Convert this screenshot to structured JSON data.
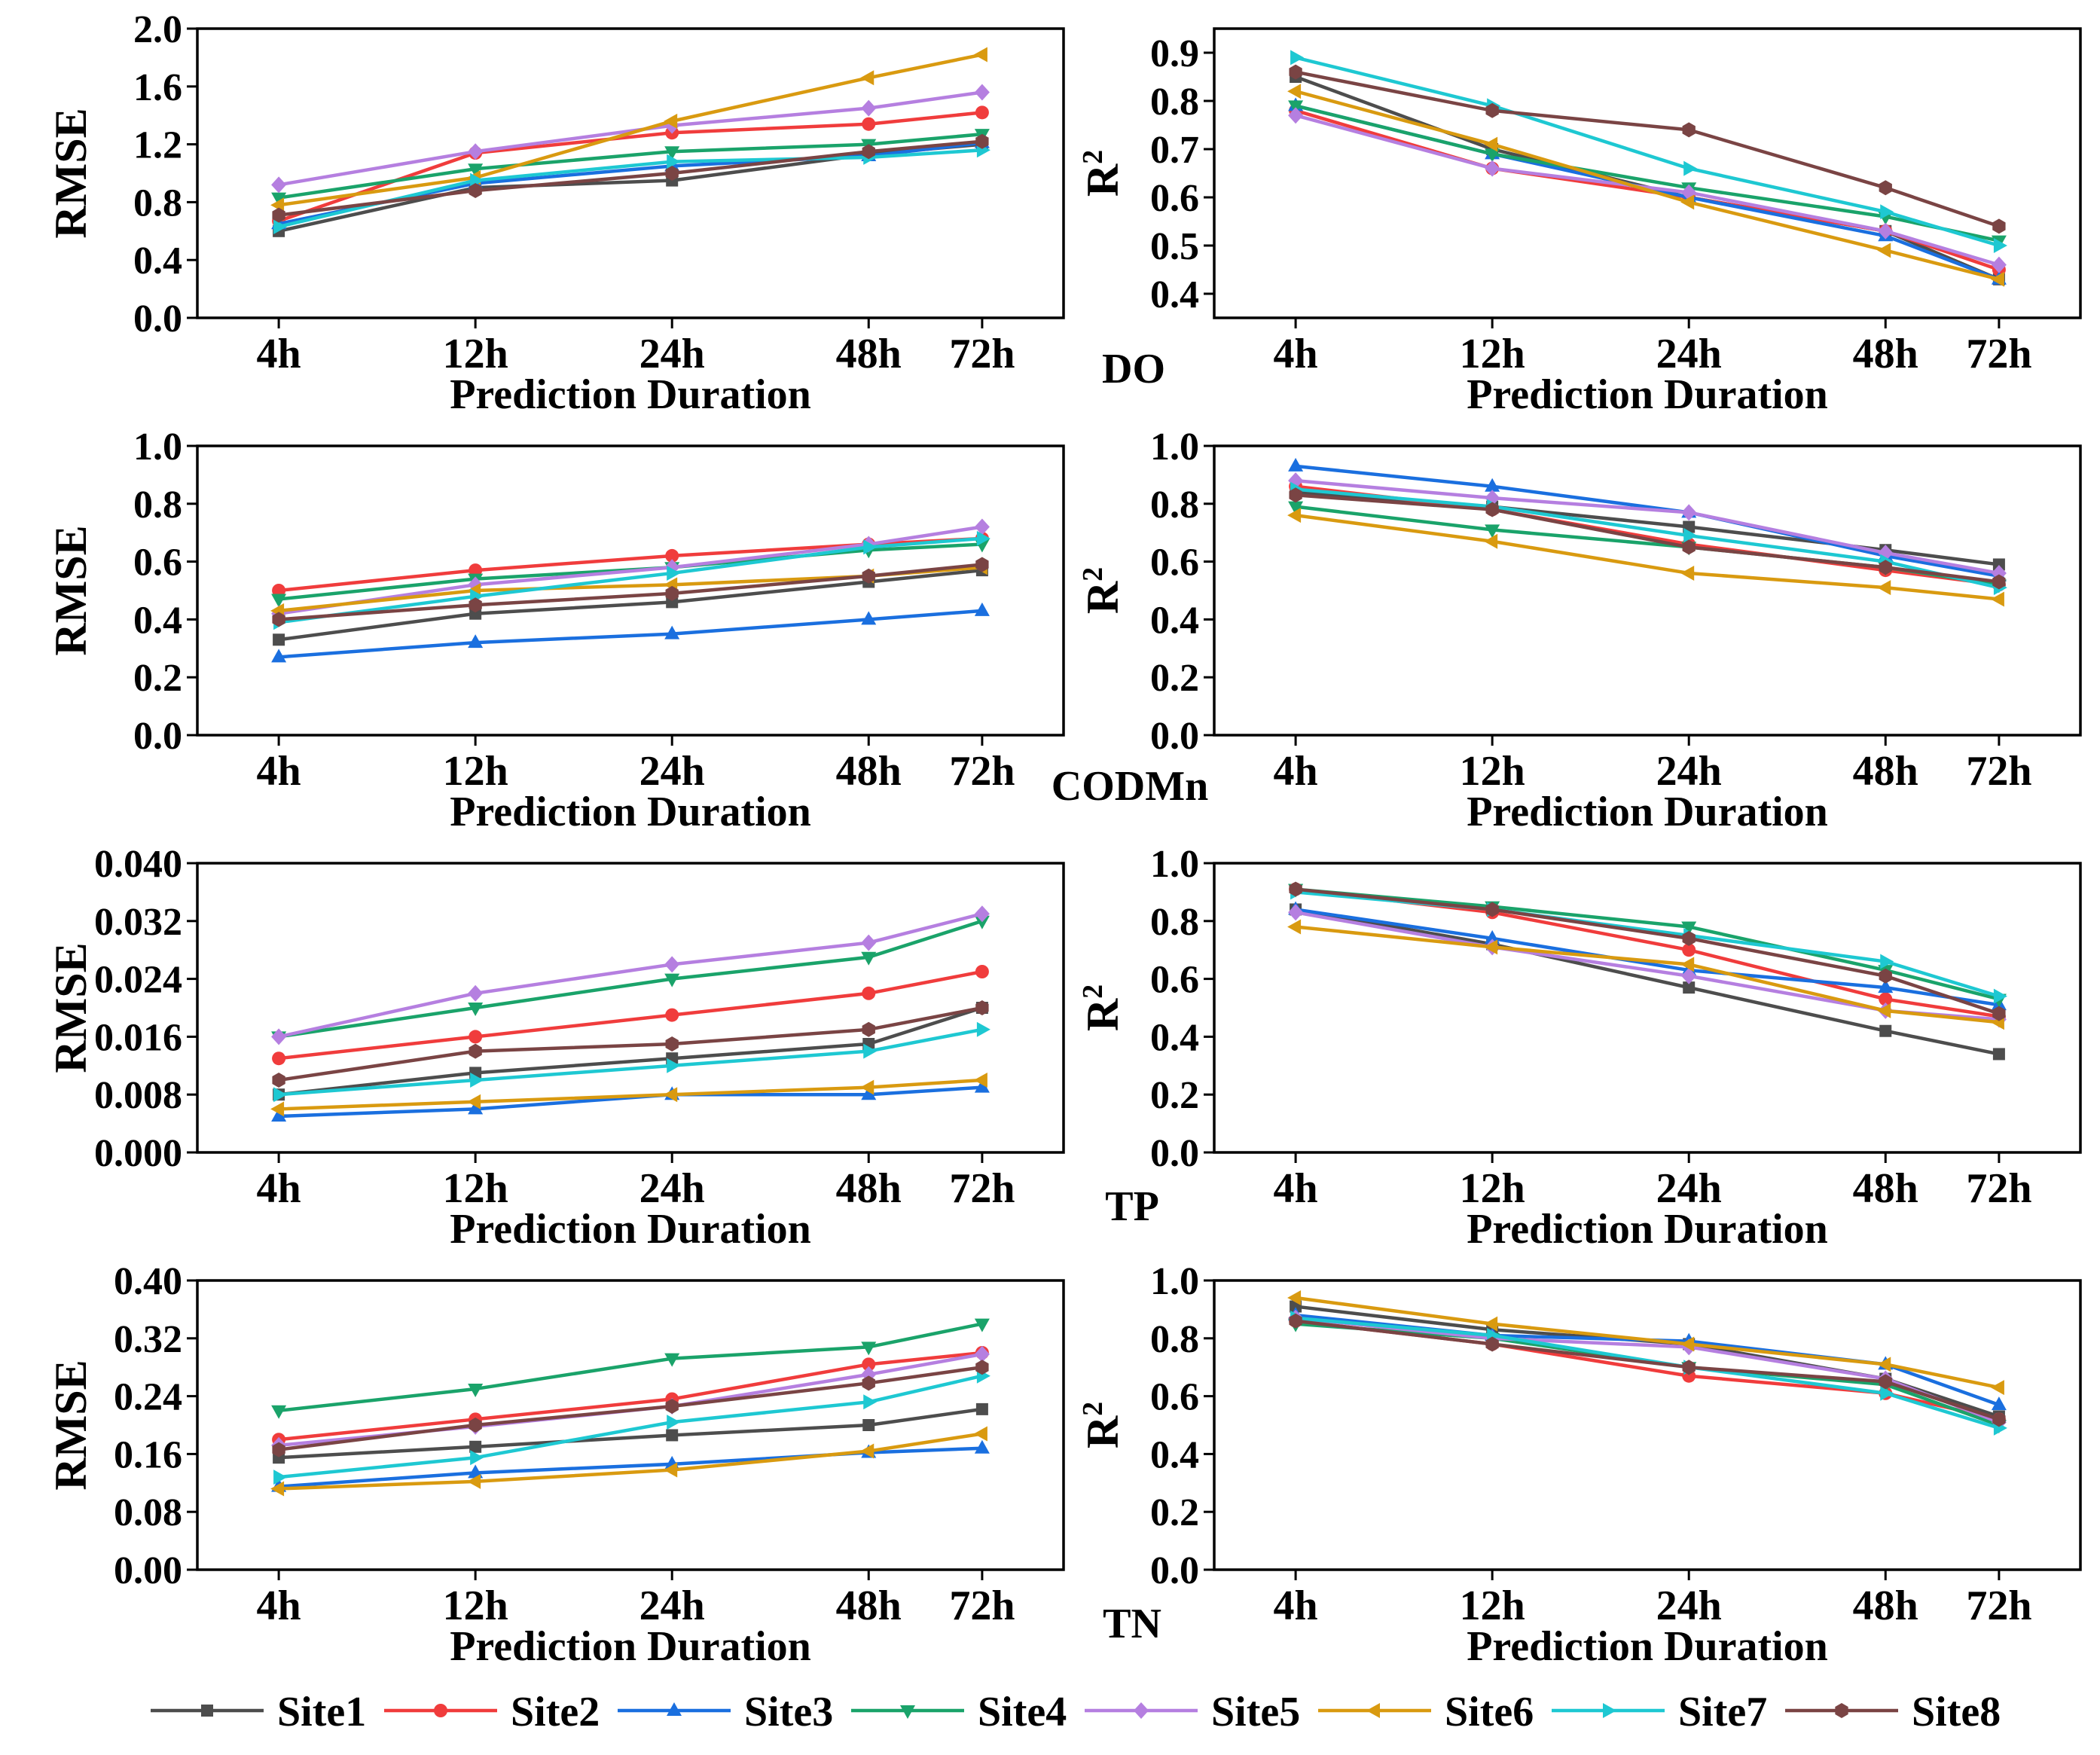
{
  "figure": {
    "x_categories": [
      "4h",
      "12h",
      "24h",
      "48h",
      "72h"
    ],
    "x_label": "Prediction Duration",
    "series_names": [
      "Site1",
      "Site2",
      "Site3",
      "Site4",
      "Site5",
      "Site6",
      "Site7",
      "Site8"
    ],
    "series_colors": [
      "#4d4d4d",
      "#f03c3c",
      "#1a6fdf",
      "#1aa36a",
      "#b57fe0",
      "#d99a10",
      "#1ec8d2",
      "#7a4444"
    ],
    "series_markers": [
      "square",
      "circle",
      "triangle-up",
      "triangle-down",
      "diamond",
      "triangle-left",
      "triangle-right",
      "hexagon"
    ],
    "parameter_labels": [
      "DO",
      "CODMn",
      "TP",
      "TN"
    ]
  },
  "chart_data": [
    {
      "type": "line",
      "parameter": "DO",
      "metric": "RMSE",
      "ylabel": "RMSE",
      "categories": [
        "4h",
        "12h",
        "24h",
        "48h",
        "72h"
      ],
      "ylim": [
        0.0,
        2.0
      ],
      "yticks": [
        "0.0",
        "0.4",
        "0.8",
        "1.2",
        "1.6",
        "2.0"
      ],
      "series": [
        {
          "name": "Site1",
          "values": [
            0.6,
            0.9,
            0.95,
            1.13,
            1.2
          ]
        },
        {
          "name": "Site2",
          "values": [
            0.67,
            1.14,
            1.28,
            1.34,
            1.42
          ]
        },
        {
          "name": "Site3",
          "values": [
            0.65,
            0.93,
            1.05,
            1.12,
            1.21
          ]
        },
        {
          "name": "Site4",
          "values": [
            0.83,
            1.03,
            1.15,
            1.2,
            1.27
          ]
        },
        {
          "name": "Site5",
          "values": [
            0.92,
            1.15,
            1.33,
            1.45,
            1.56
          ]
        },
        {
          "name": "Site6",
          "values": [
            0.78,
            0.97,
            1.36,
            1.66,
            1.82
          ]
        },
        {
          "name": "Site7",
          "values": [
            0.63,
            0.95,
            1.08,
            1.11,
            1.16
          ]
        },
        {
          "name": "Site8",
          "values": [
            0.71,
            0.88,
            1.0,
            1.15,
            1.22
          ]
        }
      ]
    },
    {
      "type": "line",
      "parameter": "DO",
      "metric": "R2",
      "categories": [
        "4h",
        "12h",
        "24h",
        "48h",
        "72h"
      ],
      "ylim": [
        0.35,
        0.95
      ],
      "yticks": [
        "0.4",
        "0.5",
        "0.6",
        "0.7",
        "0.8",
        "0.9"
      ],
      "series": [
        {
          "name": "Site1",
          "values": [
            0.85,
            0.7,
            0.6,
            0.53,
            0.43
          ]
        },
        {
          "name": "Site2",
          "values": [
            0.78,
            0.66,
            0.6,
            0.53,
            0.45
          ]
        },
        {
          "name": "Site3",
          "values": [
            0.79,
            0.69,
            0.6,
            0.52,
            0.43
          ]
        },
        {
          "name": "Site4",
          "values": [
            0.79,
            0.69,
            0.62,
            0.56,
            0.51
          ]
        },
        {
          "name": "Site5",
          "values": [
            0.77,
            0.66,
            0.61,
            0.53,
            0.46
          ]
        },
        {
          "name": "Site6",
          "values": [
            0.82,
            0.71,
            0.59,
            0.49,
            0.43
          ]
        },
        {
          "name": "Site7",
          "values": [
            0.89,
            0.79,
            0.66,
            0.57,
            0.5
          ]
        },
        {
          "name": "Site8",
          "values": [
            0.86,
            0.78,
            0.74,
            0.62,
            0.54
          ]
        }
      ]
    },
    {
      "type": "line",
      "parameter": "CODMn",
      "metric": "RMSE",
      "ylabel": "RMSE",
      "categories": [
        "4h",
        "12h",
        "24h",
        "48h",
        "72h"
      ],
      "ylim": [
        0.0,
        1.0
      ],
      "yticks": [
        "0.0",
        "0.2",
        "0.4",
        "0.6",
        "0.8",
        "1.0"
      ],
      "series": [
        {
          "name": "Site1",
          "values": [
            0.33,
            0.42,
            0.46,
            0.53,
            0.57
          ]
        },
        {
          "name": "Site2",
          "values": [
            0.5,
            0.57,
            0.62,
            0.66,
            0.68
          ]
        },
        {
          "name": "Site3",
          "values": [
            0.27,
            0.32,
            0.35,
            0.4,
            0.43
          ]
        },
        {
          "name": "Site4",
          "values": [
            0.47,
            0.54,
            0.58,
            0.64,
            0.66
          ]
        },
        {
          "name": "Site5",
          "values": [
            0.42,
            0.52,
            0.58,
            0.66,
            0.72
          ]
        },
        {
          "name": "Site6",
          "values": [
            0.43,
            0.5,
            0.52,
            0.55,
            0.58
          ]
        },
        {
          "name": "Site7",
          "values": [
            0.39,
            0.48,
            0.56,
            0.65,
            0.68
          ]
        },
        {
          "name": "Site8",
          "values": [
            0.4,
            0.45,
            0.49,
            0.55,
            0.59
          ]
        }
      ]
    },
    {
      "type": "line",
      "parameter": "CODMn",
      "metric": "R2",
      "categories": [
        "4h",
        "12h",
        "24h",
        "48h",
        "72h"
      ],
      "ylim": [
        0.0,
        1.0
      ],
      "yticks": [
        "0.0",
        "0.2",
        "0.4",
        "0.6",
        "0.8",
        "1.0"
      ],
      "series": [
        {
          "name": "Site1",
          "values": [
            0.84,
            0.79,
            0.72,
            0.64,
            0.59
          ]
        },
        {
          "name": "Site2",
          "values": [
            0.86,
            0.78,
            0.66,
            0.57,
            0.52
          ]
        },
        {
          "name": "Site3",
          "values": [
            0.93,
            0.86,
            0.77,
            0.62,
            0.55
          ]
        },
        {
          "name": "Site4",
          "values": [
            0.79,
            0.71,
            0.65,
            0.58,
            0.52
          ]
        },
        {
          "name": "Site5",
          "values": [
            0.88,
            0.82,
            0.77,
            0.63,
            0.56
          ]
        },
        {
          "name": "Site6",
          "values": [
            0.76,
            0.67,
            0.56,
            0.51,
            0.47
          ]
        },
        {
          "name": "Site7",
          "values": [
            0.85,
            0.79,
            0.69,
            0.6,
            0.51
          ]
        },
        {
          "name": "Site8",
          "values": [
            0.83,
            0.78,
            0.65,
            0.58,
            0.53
          ]
        }
      ]
    },
    {
      "type": "line",
      "parameter": "TP",
      "metric": "RMSE",
      "ylabel": "RMSE",
      "categories": [
        "4h",
        "12h",
        "24h",
        "48h",
        "72h"
      ],
      "ylim": [
        0.0,
        0.04
      ],
      "yticks": [
        "0.000",
        "0.008",
        "0.016",
        "0.024",
        "0.032",
        "0.040"
      ],
      "series": [
        {
          "name": "Site1",
          "values": [
            0.008,
            0.011,
            0.013,
            0.015,
            0.02
          ]
        },
        {
          "name": "Site2",
          "values": [
            0.013,
            0.016,
            0.019,
            0.022,
            0.025
          ]
        },
        {
          "name": "Site3",
          "values": [
            0.005,
            0.006,
            0.008,
            0.008,
            0.009
          ]
        },
        {
          "name": "Site4",
          "values": [
            0.016,
            0.02,
            0.024,
            0.027,
            0.032
          ]
        },
        {
          "name": "Site5",
          "values": [
            0.016,
            0.022,
            0.026,
            0.029,
            0.033
          ]
        },
        {
          "name": "Site6",
          "values": [
            0.006,
            0.007,
            0.008,
            0.009,
            0.01
          ]
        },
        {
          "name": "Site7",
          "values": [
            0.008,
            0.01,
            0.012,
            0.014,
            0.017
          ]
        },
        {
          "name": "Site8",
          "values": [
            0.01,
            0.014,
            0.015,
            0.017,
            0.02
          ]
        }
      ]
    },
    {
      "type": "line",
      "parameter": "TP",
      "metric": "R2",
      "categories": [
        "4h",
        "12h",
        "24h",
        "48h",
        "72h"
      ],
      "ylim": [
        0.0,
        1.0
      ],
      "yticks": [
        "0.0",
        "0.2",
        "0.4",
        "0.6",
        "0.8",
        "1.0"
      ],
      "series": [
        {
          "name": "Site1",
          "values": [
            0.84,
            0.72,
            0.57,
            0.42,
            0.34
          ]
        },
        {
          "name": "Site2",
          "values": [
            0.91,
            0.83,
            0.7,
            0.53,
            0.47
          ]
        },
        {
          "name": "Site3",
          "values": [
            0.84,
            0.74,
            0.63,
            0.57,
            0.51
          ]
        },
        {
          "name": "Site4",
          "values": [
            0.91,
            0.85,
            0.78,
            0.63,
            0.53
          ]
        },
        {
          "name": "Site5",
          "values": [
            0.83,
            0.71,
            0.61,
            0.49,
            0.46
          ]
        },
        {
          "name": "Site6",
          "values": [
            0.78,
            0.71,
            0.65,
            0.49,
            0.45
          ]
        },
        {
          "name": "Site7",
          "values": [
            0.9,
            0.84,
            0.75,
            0.66,
            0.54
          ]
        },
        {
          "name": "Site8",
          "values": [
            0.91,
            0.84,
            0.74,
            0.61,
            0.48
          ]
        }
      ]
    },
    {
      "type": "line",
      "parameter": "TN",
      "metric": "RMSE",
      "ylabel": "RMSE",
      "categories": [
        "4h",
        "12h",
        "24h",
        "48h",
        "72h"
      ],
      "ylim": [
        0.0,
        0.4
      ],
      "yticks": [
        "0.00",
        "0.08",
        "0.16",
        "0.24",
        "0.32",
        "0.40"
      ],
      "series": [
        {
          "name": "Site1",
          "values": [
            0.155,
            0.17,
            0.186,
            0.2,
            0.222
          ]
        },
        {
          "name": "Site2",
          "values": [
            0.18,
            0.208,
            0.236,
            0.284,
            0.3
          ]
        },
        {
          "name": "Site3",
          "values": [
            0.115,
            0.134,
            0.146,
            0.162,
            0.168
          ]
        },
        {
          "name": "Site4",
          "values": [
            0.22,
            0.25,
            0.292,
            0.308,
            0.34
          ]
        },
        {
          "name": "Site5",
          "values": [
            0.172,
            0.198,
            0.226,
            0.27,
            0.298
          ]
        },
        {
          "name": "Site6",
          "values": [
            0.112,
            0.122,
            0.138,
            0.164,
            0.188
          ]
        },
        {
          "name": "Site7",
          "values": [
            0.128,
            0.155,
            0.204,
            0.232,
            0.268
          ]
        },
        {
          "name": "Site8",
          "values": [
            0.166,
            0.2,
            0.226,
            0.258,
            0.28
          ]
        }
      ]
    },
    {
      "type": "line",
      "parameter": "TN",
      "metric": "R2",
      "categories": [
        "4h",
        "12h",
        "24h",
        "48h",
        "72h"
      ],
      "ylim": [
        0.0,
        1.0
      ],
      "yticks": [
        "0.0",
        "0.2",
        "0.4",
        "0.6",
        "0.8",
        "1.0"
      ],
      "series": [
        {
          "name": "Site1",
          "values": [
            0.91,
            0.83,
            0.78,
            0.66,
            0.53
          ]
        },
        {
          "name": "Site2",
          "values": [
            0.86,
            0.78,
            0.67,
            0.61,
            0.52
          ]
        },
        {
          "name": "Site3",
          "values": [
            0.88,
            0.81,
            0.79,
            0.71,
            0.57
          ]
        },
        {
          "name": "Site4",
          "values": [
            0.85,
            0.8,
            0.7,
            0.64,
            0.5
          ]
        },
        {
          "name": "Site5",
          "values": [
            0.87,
            0.8,
            0.77,
            0.66,
            0.51
          ]
        },
        {
          "name": "Site6",
          "values": [
            0.94,
            0.85,
            0.78,
            0.71,
            0.63
          ]
        },
        {
          "name": "Site7",
          "values": [
            0.87,
            0.81,
            0.7,
            0.61,
            0.49
          ]
        },
        {
          "name": "Site8",
          "values": [
            0.86,
            0.78,
            0.7,
            0.65,
            0.52
          ]
        }
      ]
    }
  ]
}
